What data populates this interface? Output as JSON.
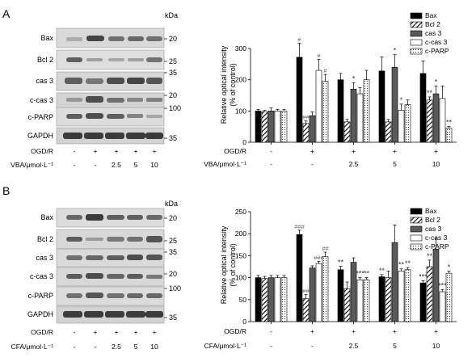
{
  "panels": [
    {
      "letter": "A",
      "kda_label": "kDa",
      "bands": [
        {
          "name": "Bax",
          "kda": "20"
        },
        {
          "name": "Bcl 2",
          "kda": "25"
        },
        {
          "name": "cas 3",
          "kda": "35"
        },
        {
          "name": "c-cas 3",
          "kda": "20"
        },
        {
          "name": "c-PARP",
          "kda": "100"
        },
        {
          "name": "GAPDH",
          "kda": "35"
        }
      ],
      "blot_rows": [
        {
          "label": "OGD/R",
          "values": [
            "-",
            "+",
            "+",
            "+",
            "+"
          ]
        },
        {
          "label": "VBA/μmol·L⁻¹",
          "values": [
            "-",
            "-",
            "2.5",
            "5",
            "10"
          ]
        }
      ],
      "chart_rows": [
        {
          "label": "OGD/R",
          "values": [
            "-",
            "+",
            "+",
            "+",
            "+"
          ]
        },
        {
          "label": "VBA/μmol·L⁻¹",
          "values": [
            "-",
            "-",
            "2.5",
            "5",
            "10"
          ]
        }
      ]
    },
    {
      "letter": "B",
      "kda_label": "kDa",
      "bands": [
        {
          "name": "Bax",
          "kda": "20"
        },
        {
          "name": "Bcl 2",
          "kda": "25"
        },
        {
          "name": "cas 3",
          "kda": "35"
        },
        {
          "name": "c-cas 3",
          "kda": "20"
        },
        {
          "name": "c-PARP",
          "kda": "100"
        },
        {
          "name": "GAPDH",
          "kda": "35"
        }
      ],
      "blot_rows": [
        {
          "label": "OGD/R",
          "values": [
            "-",
            "+",
            "+",
            "+",
            "+"
          ]
        },
        {
          "label": "CFA/μmol·L⁻¹",
          "values": [
            "-",
            "-",
            "2.5",
            "5",
            "10"
          ]
        }
      ],
      "chart_rows": [
        {
          "label": "OGD/R",
          "values": [
            "-",
            "+",
            "+",
            "+",
            "+"
          ]
        },
        {
          "label": "CFA/μmol·L⁻¹",
          "values": [
            "-",
            "-",
            "2.5",
            "5",
            "10"
          ]
        }
      ]
    }
  ],
  "chart_data": [
    {
      "type": "bar",
      "ylabel": "Relative optical intensity\n(% of control)",
      "ylim": [
        0,
        300
      ],
      "yticks": [
        "0",
        "100",
        "200",
        "300"
      ],
      "groups": 5,
      "series": [
        {
          "name": "Bax",
          "values": [
            100,
            272,
            200,
            228,
            220
          ],
          "errors": [
            5,
            45,
            20,
            45,
            40
          ],
          "marks": [
            "",
            "#",
            "",
            "",
            ""
          ]
        },
        {
          "name": "Bcl 2",
          "values": [
            98,
            60,
            65,
            65,
            135
          ],
          "errors": [
            4,
            8,
            8,
            8,
            10
          ],
          "marks": [
            "",
            "##",
            "",
            "",
            "**"
          ]
        },
        {
          "name": "cas 3",
          "values": [
            100,
            85,
            170,
            240,
            155
          ],
          "errors": [
            10,
            12,
            20,
            40,
            25
          ],
          "marks": [
            "",
            "",
            "*",
            "*",
            "*"
          ]
        },
        {
          "name": "c-cas 3",
          "values": [
            100,
            230,
            155,
            102,
            140
          ],
          "errors": [
            5,
            35,
            20,
            20,
            40
          ],
          "marks": [
            "",
            "#",
            "",
            "*",
            ""
          ]
        },
        {
          "name": "c-PARP",
          "values": [
            100,
            195,
            200,
            120,
            45
          ],
          "errors": [
            5,
            22,
            30,
            15,
            5
          ],
          "marks": [
            "",
            "#",
            "",
            "",
            "**"
          ]
        }
      ]
    },
    {
      "type": "bar",
      "ylabel": "Relative optical intensity\n(% of control)",
      "ylim": [
        0,
        250
      ],
      "yticks": [
        "0",
        "50",
        "100",
        "150",
        "200",
        "250"
      ],
      "groups": 5,
      "series": [
        {
          "name": "Bax",
          "values": [
            100,
            198,
            118,
            102,
            88
          ],
          "errors": [
            5,
            10,
            8,
            5,
            5
          ],
          "marks": [
            "",
            "###",
            "**",
            "**",
            "***"
          ]
        },
        {
          "name": "Bcl 2",
          "values": [
            98,
            52,
            75,
            100,
            125
          ],
          "errors": [
            5,
            10,
            15,
            15,
            15
          ],
          "marks": [
            "",
            "##",
            "",
            "",
            "**"
          ]
        },
        {
          "name": "cas 3",
          "values": [
            100,
            122,
            135,
            180,
            165
          ],
          "errors": [
            5,
            5,
            10,
            40,
            25
          ],
          "marks": [
            "",
            "",
            "",
            "",
            ""
          ]
        },
        {
          "name": "c-cas 3",
          "values": [
            100,
            132,
            95,
            115,
            68
          ],
          "errors": [
            5,
            5,
            5,
            5,
            5
          ],
          "marks": [
            "",
            "###",
            "***",
            "**",
            "***"
          ]
        },
        {
          "name": "c-PARP",
          "values": [
            100,
            148,
            95,
            118,
            110
          ],
          "errors": [
            5,
            10,
            5,
            5,
            5
          ],
          "marks": [
            "",
            "##",
            "**",
            "**",
            "*"
          ]
        }
      ]
    }
  ]
}
